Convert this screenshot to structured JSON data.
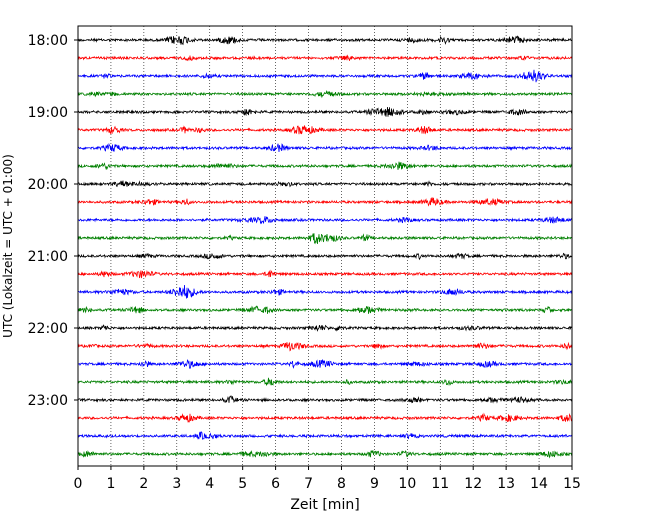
{
  "chart_data": {
    "type": "line",
    "title": "",
    "xlabel": "Zeit  [min]",
    "ylabel": "UTC (Lokalzeit = UTC + 01:00)",
    "xlim": [
      0,
      15
    ],
    "x_ticks": [
      "0",
      "1",
      "2",
      "3",
      "4",
      "5",
      "6",
      "7",
      "8",
      "9",
      "10",
      "11",
      "12",
      "13",
      "14",
      "15"
    ],
    "y_ticks": [
      "18:00",
      "19:00",
      "20:00",
      "21:00",
      "22:00",
      "23:00"
    ],
    "grid": "vertical dotted",
    "trace_interval_min": 15,
    "trace_start": "18:00",
    "trace_count": 24,
    "trace_colors": [
      "#000000",
      "#ff0000",
      "#0000ff",
      "#008000"
    ]
  }
}
